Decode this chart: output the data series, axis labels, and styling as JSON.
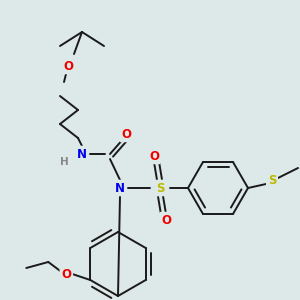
{
  "bg_color": "#dde8e8",
  "bond_color": "#1a1a1a",
  "bond_width": 1.4,
  "atom_colors": {
    "N": "#0000ee",
    "O": "#ee0000",
    "S": "#bbbb00",
    "H": "#888888",
    "C": "#1a1a1a"
  },
  "font_size": 8.5,
  "font_size_small": 7.5
}
